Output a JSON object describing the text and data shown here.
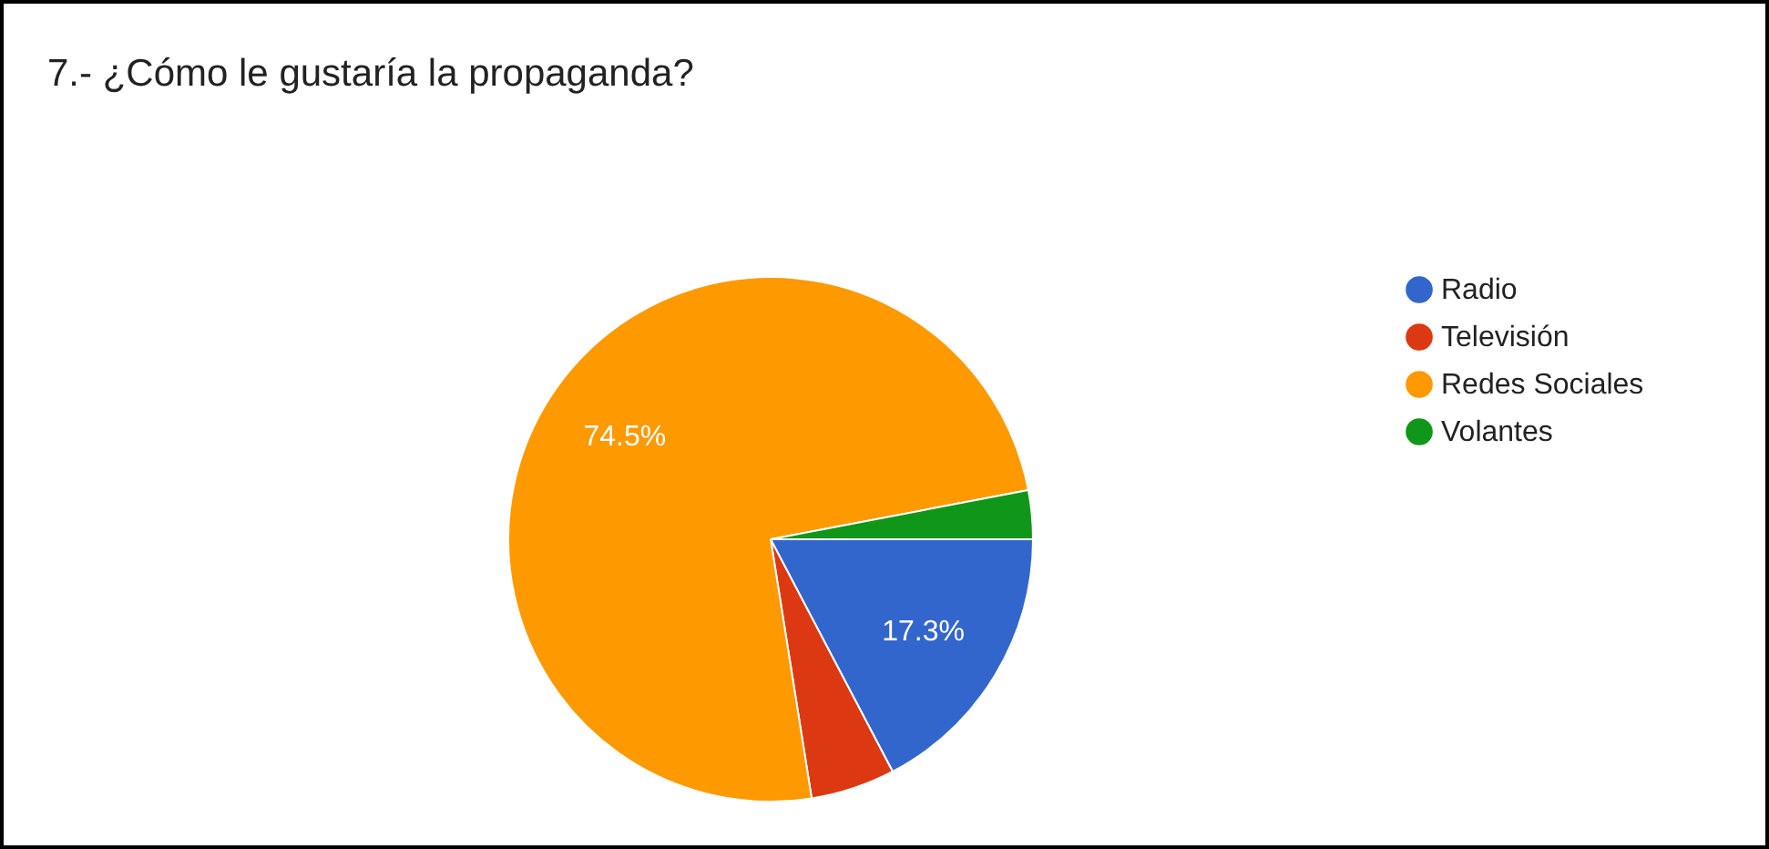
{
  "chart_data": {
    "type": "pie",
    "title": "7.- ¿Cómo le gustaría la propaganda?",
    "categories": [
      "Radio",
      "Televisión",
      "Redes Sociales",
      "Volantes"
    ],
    "values": [
      17.3,
      5.2,
      74.5,
      3.0
    ],
    "colors": [
      "#3366cc",
      "#dc3912",
      "#ff9900",
      "#109618"
    ],
    "value_labels": [
      "17.3%",
      null,
      "74.5%",
      null
    ],
    "legend": "right"
  }
}
